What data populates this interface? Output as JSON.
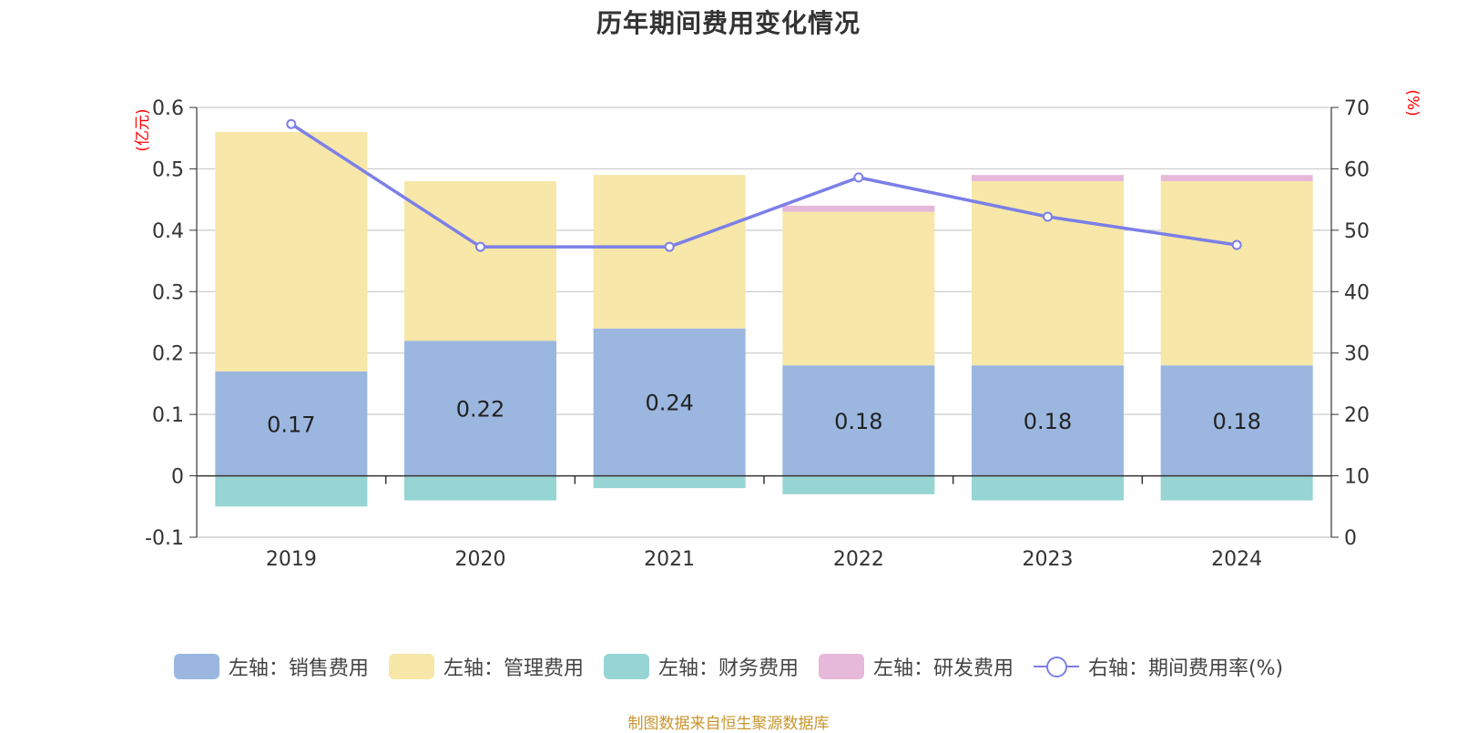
{
  "chart_data": {
    "type": "bar",
    "title": "历年期间费用变化情况",
    "categories": [
      "2019",
      "2020",
      "2021",
      "2022",
      "2023",
      "2024"
    ],
    "left_axis": {
      "unit_label": "(亿元)",
      "min": -0.1,
      "max": 0.6,
      "step": 0.1,
      "ticks": [
        "-0.1",
        "0",
        "0.1",
        "0.2",
        "0.3",
        "0.4",
        "0.5",
        "0.6"
      ]
    },
    "right_axis": {
      "unit_label": "(%)",
      "min": 0,
      "max": 70,
      "step": 10,
      "ticks": [
        "0",
        "10",
        "20",
        "30",
        "40",
        "50",
        "60",
        "70"
      ]
    },
    "series": [
      {
        "name": "左轴：销售费用",
        "axis": "left",
        "kind": "bar",
        "color": "#9bb7e0",
        "values": [
          0.17,
          0.22,
          0.24,
          0.18,
          0.18,
          0.18
        ],
        "labels": [
          "0.17",
          "0.22",
          "0.24",
          "0.18",
          "0.18",
          "0.18"
        ]
      },
      {
        "name": "左轴：管理费用",
        "axis": "left",
        "kind": "bar",
        "color": "#f7e7a8",
        "values": [
          0.39,
          0.26,
          0.25,
          0.25,
          0.3,
          0.3
        ]
      },
      {
        "name": "左轴：财务费用",
        "axis": "left",
        "kind": "bar",
        "color": "#97d4d4",
        "values": [
          -0.05,
          -0.04,
          -0.02,
          -0.03,
          -0.04,
          -0.04
        ]
      },
      {
        "name": "左轴：研发费用",
        "axis": "left",
        "kind": "bar",
        "color": "#e6b8d9",
        "values": [
          0,
          0,
          0,
          0.01,
          0.01,
          0.01
        ]
      },
      {
        "name": "右轴：期间费用率(%)",
        "axis": "right",
        "kind": "line",
        "color": "#7b7fe8",
        "values": [
          67.3,
          47.3,
          47.3,
          58.6,
          52.2,
          47.6
        ]
      }
    ],
    "grid": true,
    "legend_position": "bottom"
  },
  "source_note": "制图数据来自恒生聚源数据库"
}
